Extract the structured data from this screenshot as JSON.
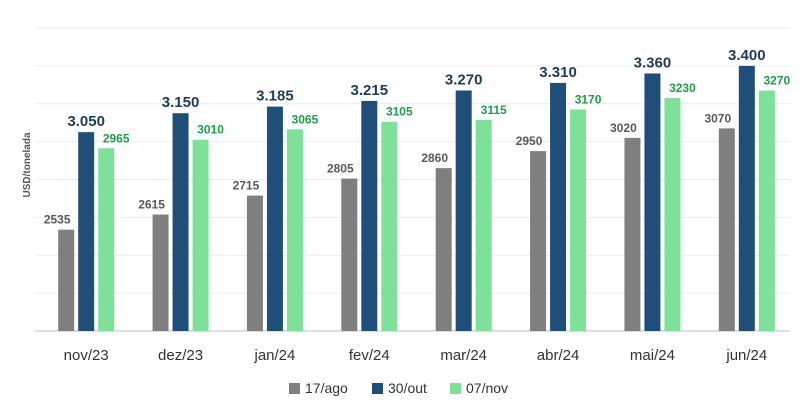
{
  "chart_data": {
    "type": "bar",
    "ylabel": "USD/tonelada",
    "categories": [
      "nov/23",
      "dez/23",
      "jan/24",
      "fev/24",
      "mar/24",
      "abr/24",
      "mai/24",
      "jun/24"
    ],
    "ylim": [
      2000,
      3600
    ],
    "grid": true,
    "legend_position": "bottom",
    "series": [
      {
        "name": "17/ago",
        "color": "#7f7f7f",
        "values": [
          2535,
          2615,
          2715,
          2805,
          2860,
          2950,
          3020,
          3070
        ],
        "labels": [
          "2535",
          "2615",
          "2715",
          "2805",
          "2860",
          "2950",
          "3020",
          "3070"
        ],
        "label_color": "#595959"
      },
      {
        "name": "30/out",
        "color": "#1f4e79",
        "values": [
          3050,
          3150,
          3185,
          3215,
          3270,
          3310,
          3360,
          3400
        ],
        "labels": [
          "3.050",
          "3.150",
          "3.185",
          "3.215",
          "3.270",
          "3.310",
          "3.360",
          "3.400"
        ],
        "label_color": "#1f3b5c"
      },
      {
        "name": "07/nov",
        "color": "#7fe09a",
        "values": [
          2965,
          3010,
          3065,
          3105,
          3115,
          3170,
          3230,
          3270
        ],
        "labels": [
          "2965",
          "3010",
          "3065",
          "3105",
          "3115",
          "3170",
          "3230",
          "3270"
        ],
        "label_color": "#1e9e48"
      }
    ]
  }
}
